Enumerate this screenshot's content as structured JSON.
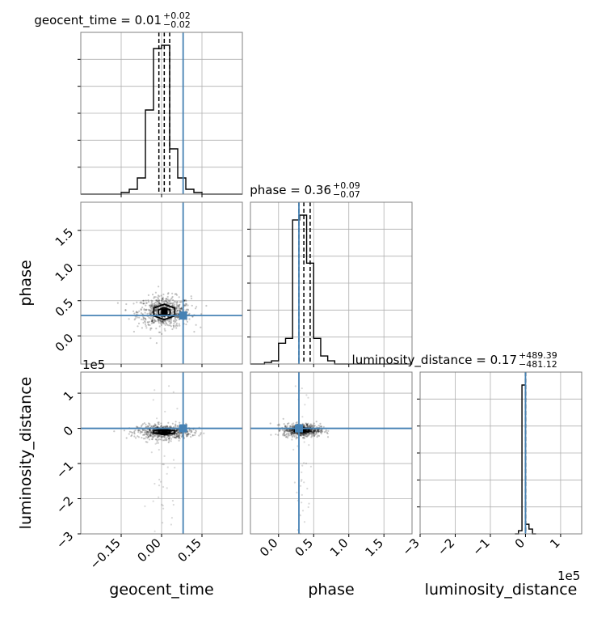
{
  "chart_data": {
    "type": "corner",
    "parameters": [
      "geocent_time",
      "phase",
      "luminosity_distance"
    ],
    "titles": [
      {
        "text": "geocent_time = 0.01",
        "sup": "+0.02",
        "sub": "−0.02"
      },
      {
        "text": "phase = 0.36",
        "sup": "+0.09",
        "sub": "−0.07"
      },
      {
        "text": "luminosity_distance = 0.17",
        "sup": "+489.39",
        "sub": "−481.12"
      }
    ],
    "ranges": [
      [
        -0.3,
        0.3
      ],
      [
        -0.4,
        1.9
      ],
      [
        -300000,
        160000
      ]
    ],
    "truths": [
      0.08,
      0.29,
      0
    ],
    "quantiles": [
      [
        -0.01,
        0.01,
        0.03
      ],
      [
        0.29,
        0.36,
        0.45
      ],
      [
        -481.12,
        0.17,
        489.39
      ]
    ],
    "x_ticks": {
      "geocent_time": [
        -0.15,
        0.0,
        0.15
      ],
      "phase": [
        0.0,
        0.5,
        1.0,
        1.5
      ],
      "luminosity_distance": [
        -3,
        -2,
        -1,
        0,
        1
      ]
    },
    "y_ticks": {
      "phase": [
        0.0,
        0.5,
        1.0,
        1.5
      ],
      "luminosity_distance": [
        -3,
        -2,
        -1,
        0,
        1
      ]
    },
    "x_tick_labels": {
      "geocent_time": [
        "−0.15",
        "0.00",
        "0.15"
      ],
      "phase": [
        "0.0",
        "0.5",
        "1.0",
        "1.5"
      ],
      "luminosity_distance": [
        "−3",
        "−2",
        "−1",
        "0",
        "1"
      ]
    },
    "y_tick_labels": {
      "phase": [
        "0.0",
        "0.5",
        "1.0",
        "1.5"
      ],
      "luminosity_distance": [
        "−3",
        "−2",
        "−1",
        "0",
        "1"
      ]
    },
    "offset_label": "1e5",
    "histograms": {
      "geocent_time": {
        "edges": [
          -0.3,
          -0.27,
          -0.24,
          -0.21,
          -0.18,
          -0.15,
          -0.12,
          -0.09,
          -0.06,
          -0.03,
          0.0,
          0.03,
          0.06,
          0.09,
          0.12,
          0.15,
          0.18,
          0.21,
          0.24,
          0.27,
          0.3
        ],
        "counts": [
          0,
          0,
          0,
          0,
          0,
          1,
          3,
          10,
          52,
          90,
          92,
          28,
          10,
          3,
          1,
          0,
          0,
          0,
          0,
          0
        ]
      },
      "phase": {
        "edges": [
          -0.4,
          -0.3,
          -0.2,
          -0.1,
          0.0,
          0.1,
          0.2,
          0.3,
          0.4,
          0.5,
          0.6,
          0.7,
          0.8,
          0.9,
          1.0,
          1.1,
          1.2,
          1.3,
          1.4,
          1.5,
          1.6,
          1.7,
          1.8,
          1.9
        ],
        "counts": [
          0,
          0,
          1,
          2,
          13,
          16,
          90,
          93,
          63,
          16,
          5,
          2,
          0,
          0,
          0,
          0,
          0,
          0,
          0,
          0,
          0,
          0,
          0
        ]
      },
      "luminosity_distance": {
        "edges": [
          -30000,
          -20000,
          -10000,
          0,
          10000,
          20000,
          30000
        ],
        "counts": [
          0,
          2,
          93,
          6,
          3,
          0
        ]
      }
    },
    "contours": [
      {
        "x_param": "geocent_time",
        "y_param": "phase",
        "center": [
          0.01,
          0.34
        ],
        "widths": [
          0.045,
          0.11
        ]
      },
      {
        "x_param": "geocent_time",
        "y_param": "luminosity_distance",
        "center": [
          0.01,
          -10000
        ],
        "widths": [
          0.045,
          10000
        ]
      },
      {
        "x_param": "phase",
        "y_param": "luminosity_distance",
        "center": [
          0.33,
          -5000
        ],
        "widths": [
          0.12,
          9000
        ]
      }
    ]
  }
}
